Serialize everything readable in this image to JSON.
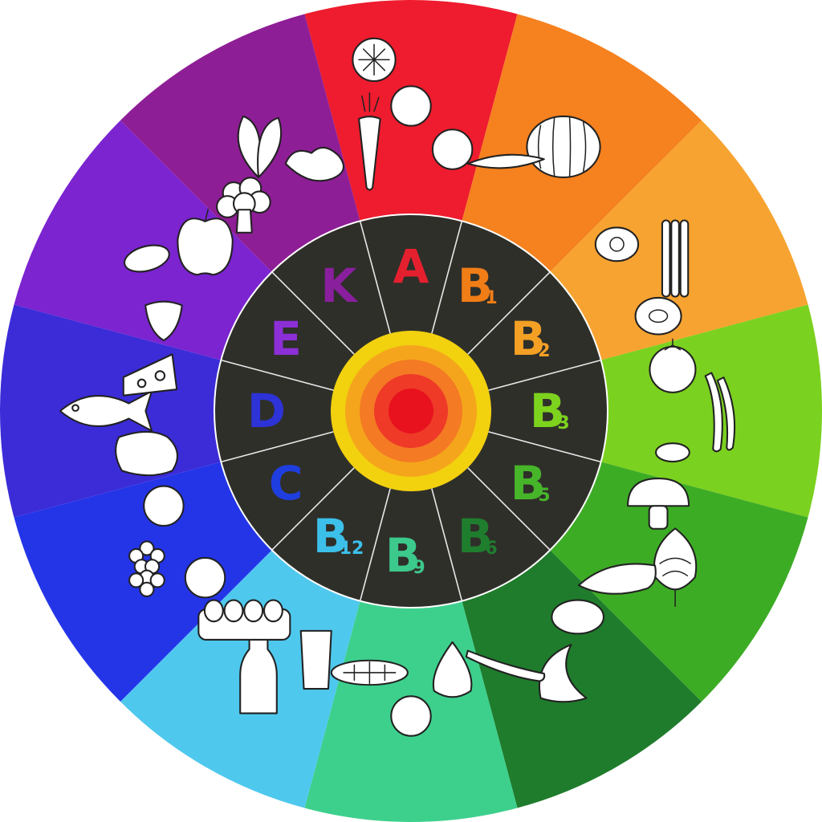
{
  "wheel": {
    "hub_colors": [
      "#f2d10e",
      "#f5a51c",
      "#f47a24",
      "#ef3a28",
      "#e8121f"
    ],
    "inner_disk_color": "#2f2f2a",
    "spoke_color": "#e8e8e8"
  },
  "vitamins": [
    {
      "letter": "A",
      "sub": "",
      "color": "#e5202e",
      "sector_color": "#ee1c2e",
      "foods": [
        "plum-icon",
        "carrot-icon",
        "orange-icon",
        "lemon-slice-icon"
      ]
    },
    {
      "letter": "B",
      "sub": "1",
      "color": "#f07d16",
      "sector_color": "#f5811f",
      "foods": [
        "watermelon-icon",
        "pea-pod-icon"
      ]
    },
    {
      "letter": "B",
      "sub": "2",
      "color": "#f4a024",
      "sector_color": "#f7a331",
      "foods": [
        "asparagus-icon",
        "egg-icon",
        "kiwi-icon"
      ]
    },
    {
      "letter": "B",
      "sub": "3",
      "color": "#7dd21e",
      "sector_color": "#7bd11f",
      "foods": [
        "chili-pepper-icon",
        "tomato-icon",
        "pistachio-icon"
      ]
    },
    {
      "letter": "B",
      "sub": "5",
      "color": "#47b52a",
      "sector_color": "#3dac25",
      "foods": [
        "artichoke-icon",
        "mushroom-icon",
        "zucchini-icon"
      ]
    },
    {
      "letter": "B",
      "sub": "6",
      "color": "#1f7e2e",
      "sector_color": "#1f7c2c",
      "foods": [
        "banana-icon",
        "potato-icon",
        "bean-icon"
      ]
    },
    {
      "letter": "B",
      "sub": "9",
      "color": "#3cc98c",
      "sector_color": "#3dd08d",
      "foods": [
        "peach-icon",
        "onion-icon",
        "corn-icon"
      ]
    },
    {
      "letter": "B",
      "sub": "12",
      "color": "#3cc0ea",
      "sector_color": "#4fc8ee",
      "foods": [
        "milk-bottle-icon",
        "glass-icon",
        "eggs-carton-icon"
      ]
    },
    {
      "letter": "C",
      "sub": "",
      "color": "#1f3ee0",
      "sector_color": "#2435e8",
      "foods": [
        "grapes-icon",
        "apricot-icon",
        "lemon-icon"
      ]
    },
    {
      "letter": "D",
      "sub": "",
      "color": "#2d33d6",
      "sector_color": "#3b2cd8",
      "foods": [
        "fish-icon",
        "steak-icon",
        "cheese-icon"
      ]
    },
    {
      "letter": "E",
      "sub": "",
      "color": "#8d2fd6",
      "sector_color": "#7b24d0",
      "foods": [
        "almond-icon",
        "strawberry-icon",
        "apple-icon"
      ]
    },
    {
      "letter": "K",
      "sub": "",
      "color": "#8a1f9e",
      "sector_color": "#8e1e96",
      "foods": [
        "spinach-icon",
        "broccoli-icon",
        "ginger-icon"
      ]
    }
  ]
}
